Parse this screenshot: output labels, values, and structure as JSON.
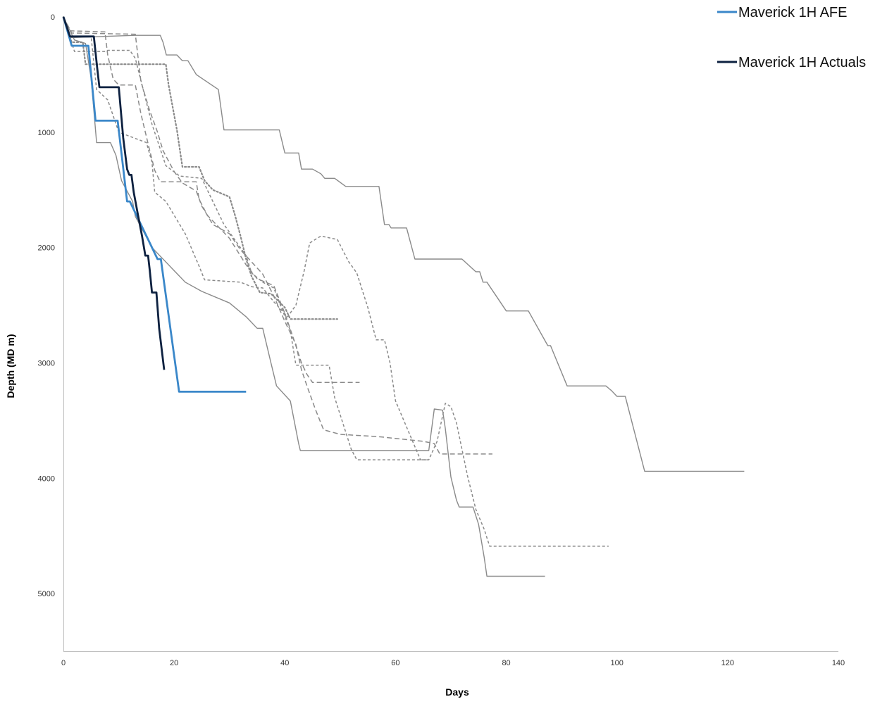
{
  "chart_data": {
    "type": "line",
    "title": "",
    "xlabel": "Days",
    "ylabel": "Depth (MD m)",
    "xlim": [
      0,
      140
    ],
    "ylim": [
      0,
      5500
    ],
    "y_inverted": true,
    "x_ticks": [
      0,
      20,
      40,
      60,
      80,
      100,
      120,
      140
    ],
    "y_ticks": [
      0,
      1000,
      2000,
      3000,
      4000,
      5000
    ],
    "x_tick_labels": [
      "0",
      "20",
      "40",
      "60",
      "80",
      "100",
      "120",
      "140"
    ],
    "y_tick_labels": [
      "0",
      "1000",
      "2000",
      "3000",
      "4000",
      "5000"
    ],
    "grid": false,
    "legend_position": "top-right",
    "legend": [
      {
        "label": "Maverick 1H AFE",
        "color": "#3a87c9"
      },
      {
        "label": "Maverick 1H Actuals",
        "color": "#0d2140"
      }
    ],
    "series": [
      {
        "name": "Maverick 1H AFE",
        "color": "#3a87c9",
        "style": "solid",
        "width": 2.8,
        "points": [
          [
            0,
            0
          ],
          [
            1.5,
            250
          ],
          [
            4.5,
            250
          ],
          [
            5.8,
            900
          ],
          [
            9.8,
            900
          ],
          [
            11.5,
            1600
          ],
          [
            12,
            1600
          ],
          [
            17,
            2100
          ],
          [
            17.6,
            2100
          ],
          [
            20.9,
            3250
          ],
          [
            33,
            3250
          ]
        ]
      },
      {
        "name": "Maverick 1H Actuals",
        "color": "#0d2140",
        "style": "solid",
        "width": 2.8,
        "points": [
          [
            0,
            0
          ],
          [
            1.2,
            170
          ],
          [
            5.5,
            170
          ],
          [
            6.1,
            440
          ],
          [
            6.5,
            610
          ],
          [
            10,
            610
          ],
          [
            10.8,
            1050
          ],
          [
            11.5,
            1320
          ],
          [
            11.9,
            1370
          ],
          [
            12.3,
            1370
          ],
          [
            12.7,
            1520
          ],
          [
            13.4,
            1700
          ],
          [
            14.2,
            1900
          ],
          [
            14.8,
            2070
          ],
          [
            15.3,
            2070
          ],
          [
            15.6,
            2200
          ],
          [
            16,
            2390
          ],
          [
            16.8,
            2390
          ],
          [
            17.3,
            2700
          ],
          [
            18.2,
            3060
          ]
        ]
      },
      {
        "name": "",
        "color": "#8a8a8a",
        "style": "solid",
        "width": 1.4,
        "points": [
          [
            0,
            0
          ],
          [
            1,
            180
          ],
          [
            13,
            160
          ],
          [
            17.5,
            160
          ],
          [
            18,
            220
          ],
          [
            18.6,
            330
          ],
          [
            20.5,
            330
          ],
          [
            21.5,
            380
          ],
          [
            22.5,
            380
          ],
          [
            24,
            500
          ],
          [
            28,
            630
          ],
          [
            29,
            980
          ],
          [
            39,
            980
          ],
          [
            40,
            1180
          ],
          [
            42.5,
            1180
          ],
          [
            43,
            1320
          ],
          [
            45,
            1320
          ],
          [
            46.5,
            1360
          ],
          [
            47.2,
            1400
          ],
          [
            49,
            1400
          ],
          [
            51,
            1470
          ],
          [
            57,
            1470
          ],
          [
            58,
            1800
          ],
          [
            58.8,
            1800
          ],
          [
            59.2,
            1830
          ],
          [
            62,
            1830
          ],
          [
            63.5,
            2100
          ],
          [
            72,
            2100
          ],
          [
            74.5,
            2210
          ],
          [
            75.2,
            2210
          ],
          [
            75.8,
            2300
          ],
          [
            76.5,
            2300
          ],
          [
            80,
            2550
          ],
          [
            84,
            2550
          ],
          [
            87.5,
            2850
          ],
          [
            88,
            2850
          ],
          [
            91,
            3200
          ],
          [
            98,
            3200
          ],
          [
            98.5,
            3220
          ],
          [
            99,
            3240
          ],
          [
            100,
            3290
          ],
          [
            101.5,
            3290
          ],
          [
            105,
            3940
          ],
          [
            123,
            3940
          ]
        ]
      },
      {
        "name": "",
        "color": "#8a8a8a",
        "style": "solid",
        "width": 1.4,
        "points": [
          [
            0,
            0
          ],
          [
            2,
            200
          ],
          [
            4,
            230
          ],
          [
            5,
            530
          ],
          [
            6,
            1090
          ],
          [
            8.5,
            1090
          ],
          [
            9.5,
            1200
          ],
          [
            10.5,
            1420
          ],
          [
            12.5,
            1600
          ],
          [
            13,
            1730
          ],
          [
            16,
            2000
          ],
          [
            19,
            2150
          ],
          [
            22,
            2300
          ],
          [
            25,
            2380
          ],
          [
            30,
            2480
          ],
          [
            33,
            2600
          ],
          [
            35,
            2700
          ],
          [
            36,
            2700
          ],
          [
            37.5,
            3000
          ],
          [
            38.5,
            3200
          ],
          [
            41,
            3330
          ],
          [
            42.5,
            3700
          ],
          [
            42.8,
            3760
          ],
          [
            50,
            3760
          ],
          [
            66,
            3760
          ],
          [
            67,
            3400
          ],
          [
            68.5,
            3410
          ],
          [
            69,
            3570
          ],
          [
            70,
            3990
          ],
          [
            71,
            4190
          ],
          [
            71.5,
            4250
          ],
          [
            74,
            4250
          ],
          [
            75,
            4400
          ],
          [
            76,
            4680
          ],
          [
            76.5,
            4850
          ],
          [
            87,
            4850
          ]
        ]
      },
      {
        "name": "",
        "color": "#8a8a8a",
        "style": "dotted",
        "width": 2.2,
        "points": [
          [
            0,
            0
          ],
          [
            1.5,
            220
          ],
          [
            3.5,
            220
          ],
          [
            4,
            410
          ],
          [
            18.5,
            410
          ],
          [
            19,
            590
          ],
          [
            20.5,
            980
          ],
          [
            21.5,
            1300
          ],
          [
            24.5,
            1300
          ],
          [
            25.5,
            1420
          ],
          [
            27,
            1500
          ],
          [
            30,
            1560
          ],
          [
            31,
            1720
          ],
          [
            32,
            1900
          ],
          [
            33,
            2100
          ],
          [
            34,
            2250
          ],
          [
            35.5,
            2390
          ],
          [
            37.5,
            2400
          ],
          [
            40,
            2520
          ],
          [
            41,
            2620
          ],
          [
            49.5,
            2620
          ]
        ]
      },
      {
        "name": "",
        "color": "#8a8a8a",
        "style": "dashed",
        "width": 1.5,
        "points": [
          [
            0,
            0
          ],
          [
            1,
            120
          ],
          [
            7.5,
            130
          ],
          [
            8,
            330
          ],
          [
            9,
            540
          ],
          [
            10,
            590
          ],
          [
            13,
            590
          ],
          [
            14,
            840
          ],
          [
            15.5,
            1140
          ],
          [
            16.5,
            1330
          ],
          [
            17.5,
            1430
          ],
          [
            24,
            1430
          ],
          [
            24.5,
            1580
          ],
          [
            26,
            1720
          ],
          [
            30,
            1920
          ],
          [
            33,
            2150
          ],
          [
            35,
            2270
          ],
          [
            38,
            2330
          ],
          [
            40,
            2570
          ],
          [
            41.5,
            2780
          ],
          [
            43,
            3000
          ],
          [
            44,
            3100
          ],
          [
            45,
            3170
          ],
          [
            53.5,
            3170
          ]
        ]
      },
      {
        "name": "",
        "color": "#8a8a8a",
        "style": "dashed",
        "width": 1.5,
        "points": [
          [
            0,
            0
          ],
          [
            1.5,
            140
          ],
          [
            13,
            150
          ],
          [
            14,
            560
          ],
          [
            15.5,
            800
          ],
          [
            17,
            1000
          ],
          [
            18,
            1160
          ],
          [
            20,
            1340
          ],
          [
            21.5,
            1440
          ],
          [
            24,
            1510
          ],
          [
            25,
            1640
          ],
          [
            27,
            1800
          ],
          [
            30,
            1880
          ],
          [
            32,
            2020
          ],
          [
            36,
            2230
          ],
          [
            38,
            2420
          ],
          [
            40,
            2640
          ],
          [
            42,
            2840
          ],
          [
            43,
            3060
          ],
          [
            44,
            3200
          ],
          [
            45.5,
            3400
          ],
          [
            47,
            3580
          ],
          [
            50,
            3620
          ],
          [
            57,
            3640
          ],
          [
            65,
            3680
          ],
          [
            67,
            3700
          ],
          [
            68,
            3790
          ],
          [
            77.5,
            3790
          ]
        ]
      },
      {
        "name": "",
        "color": "#8a8a8a",
        "style": "short-dashed",
        "width": 1.5,
        "points": [
          [
            0,
            0
          ],
          [
            1,
            170
          ],
          [
            5,
            170
          ],
          [
            6,
            630
          ],
          [
            8,
            720
          ],
          [
            10,
            1000
          ],
          [
            15,
            1090
          ],
          [
            16,
            1260
          ],
          [
            16.5,
            1520
          ],
          [
            18.5,
            1600
          ],
          [
            22,
            1880
          ],
          [
            24.5,
            2160
          ],
          [
            25.5,
            2280
          ],
          [
            32,
            2300
          ],
          [
            34,
            2340
          ],
          [
            36,
            2350
          ],
          [
            38,
            2470
          ],
          [
            40.5,
            2600
          ],
          [
            42,
            2500
          ],
          [
            43.5,
            2200
          ],
          [
            44.5,
            1960
          ],
          [
            46.5,
            1900
          ],
          [
            49.5,
            1930
          ],
          [
            51.5,
            2120
          ],
          [
            53,
            2220
          ],
          [
            55,
            2520
          ],
          [
            56.5,
            2800
          ],
          [
            58,
            2800
          ],
          [
            59,
            3000
          ],
          [
            60,
            3330
          ],
          [
            64.5,
            3840
          ],
          [
            66,
            3840
          ]
        ]
      },
      {
        "name": "",
        "color": "#8a8a8a",
        "style": "short-dashed",
        "width": 1.5,
        "points": [
          [
            0,
            0
          ],
          [
            2,
            300
          ],
          [
            7.5,
            300
          ],
          [
            8,
            290
          ],
          [
            12,
            290
          ],
          [
            13,
            360
          ],
          [
            16,
            930
          ],
          [
            18.5,
            1290
          ],
          [
            21,
            1380
          ],
          [
            25,
            1400
          ],
          [
            27,
            1600
          ],
          [
            29,
            1800
          ],
          [
            33,
            2070
          ],
          [
            34,
            2220
          ],
          [
            36,
            2300
          ],
          [
            38,
            2350
          ],
          [
            41,
            2720
          ],
          [
            42,
            3020
          ],
          [
            48,
            3020
          ],
          [
            49,
            3300
          ],
          [
            51,
            3600
          ],
          [
            52,
            3750
          ],
          [
            53,
            3840
          ],
          [
            66,
            3840
          ],
          [
            67.5,
            3680
          ],
          [
            69,
            3350
          ],
          [
            70,
            3380
          ],
          [
            71,
            3520
          ],
          [
            73,
            3980
          ],
          [
            74.5,
            4270
          ],
          [
            76,
            4440
          ],
          [
            77,
            4590
          ],
          [
            98.5,
            4590
          ]
        ]
      }
    ]
  }
}
